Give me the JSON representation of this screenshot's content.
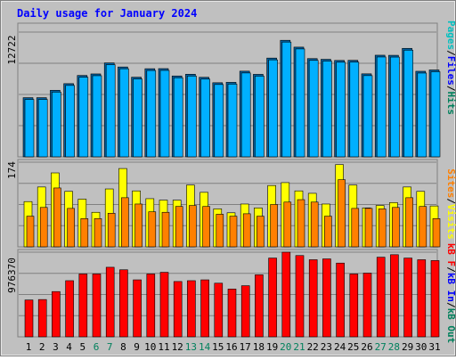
{
  "chart_data": [
    {
      "type": "bar",
      "title": "Daily usage for January 2024",
      "categories": [
        "1",
        "2",
        "3",
        "4",
        "5",
        "6",
        "7",
        "8",
        "9",
        "10",
        "11",
        "12",
        "13",
        "14",
        "15",
        "16",
        "17",
        "18",
        "19",
        "20",
        "21",
        "22",
        "23",
        "24",
        "25",
        "26",
        "27",
        "28",
        "29",
        "30",
        "31"
      ],
      "weekend_days": [
        "6",
        "7",
        "13",
        "14",
        "20",
        "21",
        "27",
        "28"
      ],
      "ymax_label": "12722",
      "ymax": 12722,
      "axis_title": [
        "Pages",
        "Files",
        "Hits"
      ],
      "series": [
        {
          "name": "Hits",
          "color": "#00b0ff",
          "values": [
            5700,
            5700,
            6420,
            7070,
            7870,
            8020,
            9100,
            8700,
            7700,
            8530,
            8540,
            7820,
            7990,
            7690,
            7160,
            7200,
            8290,
            7980,
            9570,
            11310,
            10640,
            9520,
            9450,
            9340,
            9350,
            8030,
            9850,
            9840,
            10520,
            8280,
            8410
          ]
        },
        {
          "name": "Files",
          "color": "#0080c0",
          "values": [
            5700,
            5700,
            6420,
            7070,
            7870,
            8020,
            9100,
            8700,
            7700,
            8530,
            8540,
            7820,
            7990,
            7690,
            7160,
            7200,
            8290,
            7980,
            9570,
            11310,
            10640,
            9520,
            9450,
            9340,
            9350,
            8030,
            9850,
            9840,
            10520,
            8280,
            8410
          ]
        },
        {
          "name": "Pages",
          "color": "#00c0c0",
          "values": [
            5700,
            5700,
            6420,
            7070,
            7870,
            8020,
            9100,
            8700,
            7700,
            8530,
            8540,
            7820,
            7990,
            7690,
            7160,
            7200,
            8290,
            7980,
            9570,
            11310,
            10640,
            9520,
            9450,
            9340,
            9350,
            8030,
            9850,
            9840,
            10520,
            8280,
            8410
          ]
        }
      ]
    },
    {
      "type": "bar",
      "ymax_label": "174",
      "ymax": 174,
      "axis_title": [
        "Sites",
        "Visits"
      ],
      "series": [
        {
          "name": "Visits",
          "color": "#ffff00",
          "values": [
            93,
            123,
            152,
            114,
            98,
            71,
            119,
            161,
            115,
            99,
            96,
            96,
            127,
            112,
            78,
            70,
            88,
            80,
            126,
            132,
            115,
            110,
            88,
            169,
            127,
            80,
            85,
            91,
            123,
            114,
            84
          ]
        },
        {
          "name": "Sites",
          "color": "#ff8000",
          "values": [
            63,
            81,
            121,
            79,
            58,
            58,
            69,
            101,
            88,
            72,
            71,
            83,
            85,
            83,
            67,
            63,
            68,
            63,
            87,
            92,
            97,
            92,
            63,
            138,
            79,
            79,
            78,
            81,
            101,
            83,
            58
          ]
        }
      ]
    },
    {
      "type": "bar",
      "ymax_label": "976370",
      "ymax": 976370,
      "axis_title": [
        "kB F",
        "kB In",
        "kB Out"
      ],
      "series": [
        {
          "name": "kB F",
          "color": "#ff0000",
          "values": [
            440000,
            445000,
            540000,
            670000,
            750000,
            750000,
            830000,
            800000,
            680000,
            750000,
            770000,
            660000,
            670000,
            680000,
            640000,
            570000,
            610000,
            740000,
            940000,
            1010000,
            970000,
            920000,
            930000,
            880000,
            750000,
            760000,
            950000,
            980000,
            940000,
            920000,
            910000
          ]
        }
      ]
    }
  ],
  "colors": {
    "background": "#c0c0c0",
    "frame_dark": "#808080",
    "frame_light": "#ffffff",
    "title_color": "#0000ff",
    "weekday_label": "#000000",
    "weekend_label": "#00805c",
    "bar_outline": "#000000",
    "hits_label": "#00805c",
    "files_label": "#0000ff",
    "pages_label": "#00c0c0",
    "sites_label": "#ff8000",
    "visits_label": "#ffff00",
    "kbf_label": "#ff0000",
    "kbin_label": "#0000ff",
    "kbout_label": "#00805c"
  }
}
